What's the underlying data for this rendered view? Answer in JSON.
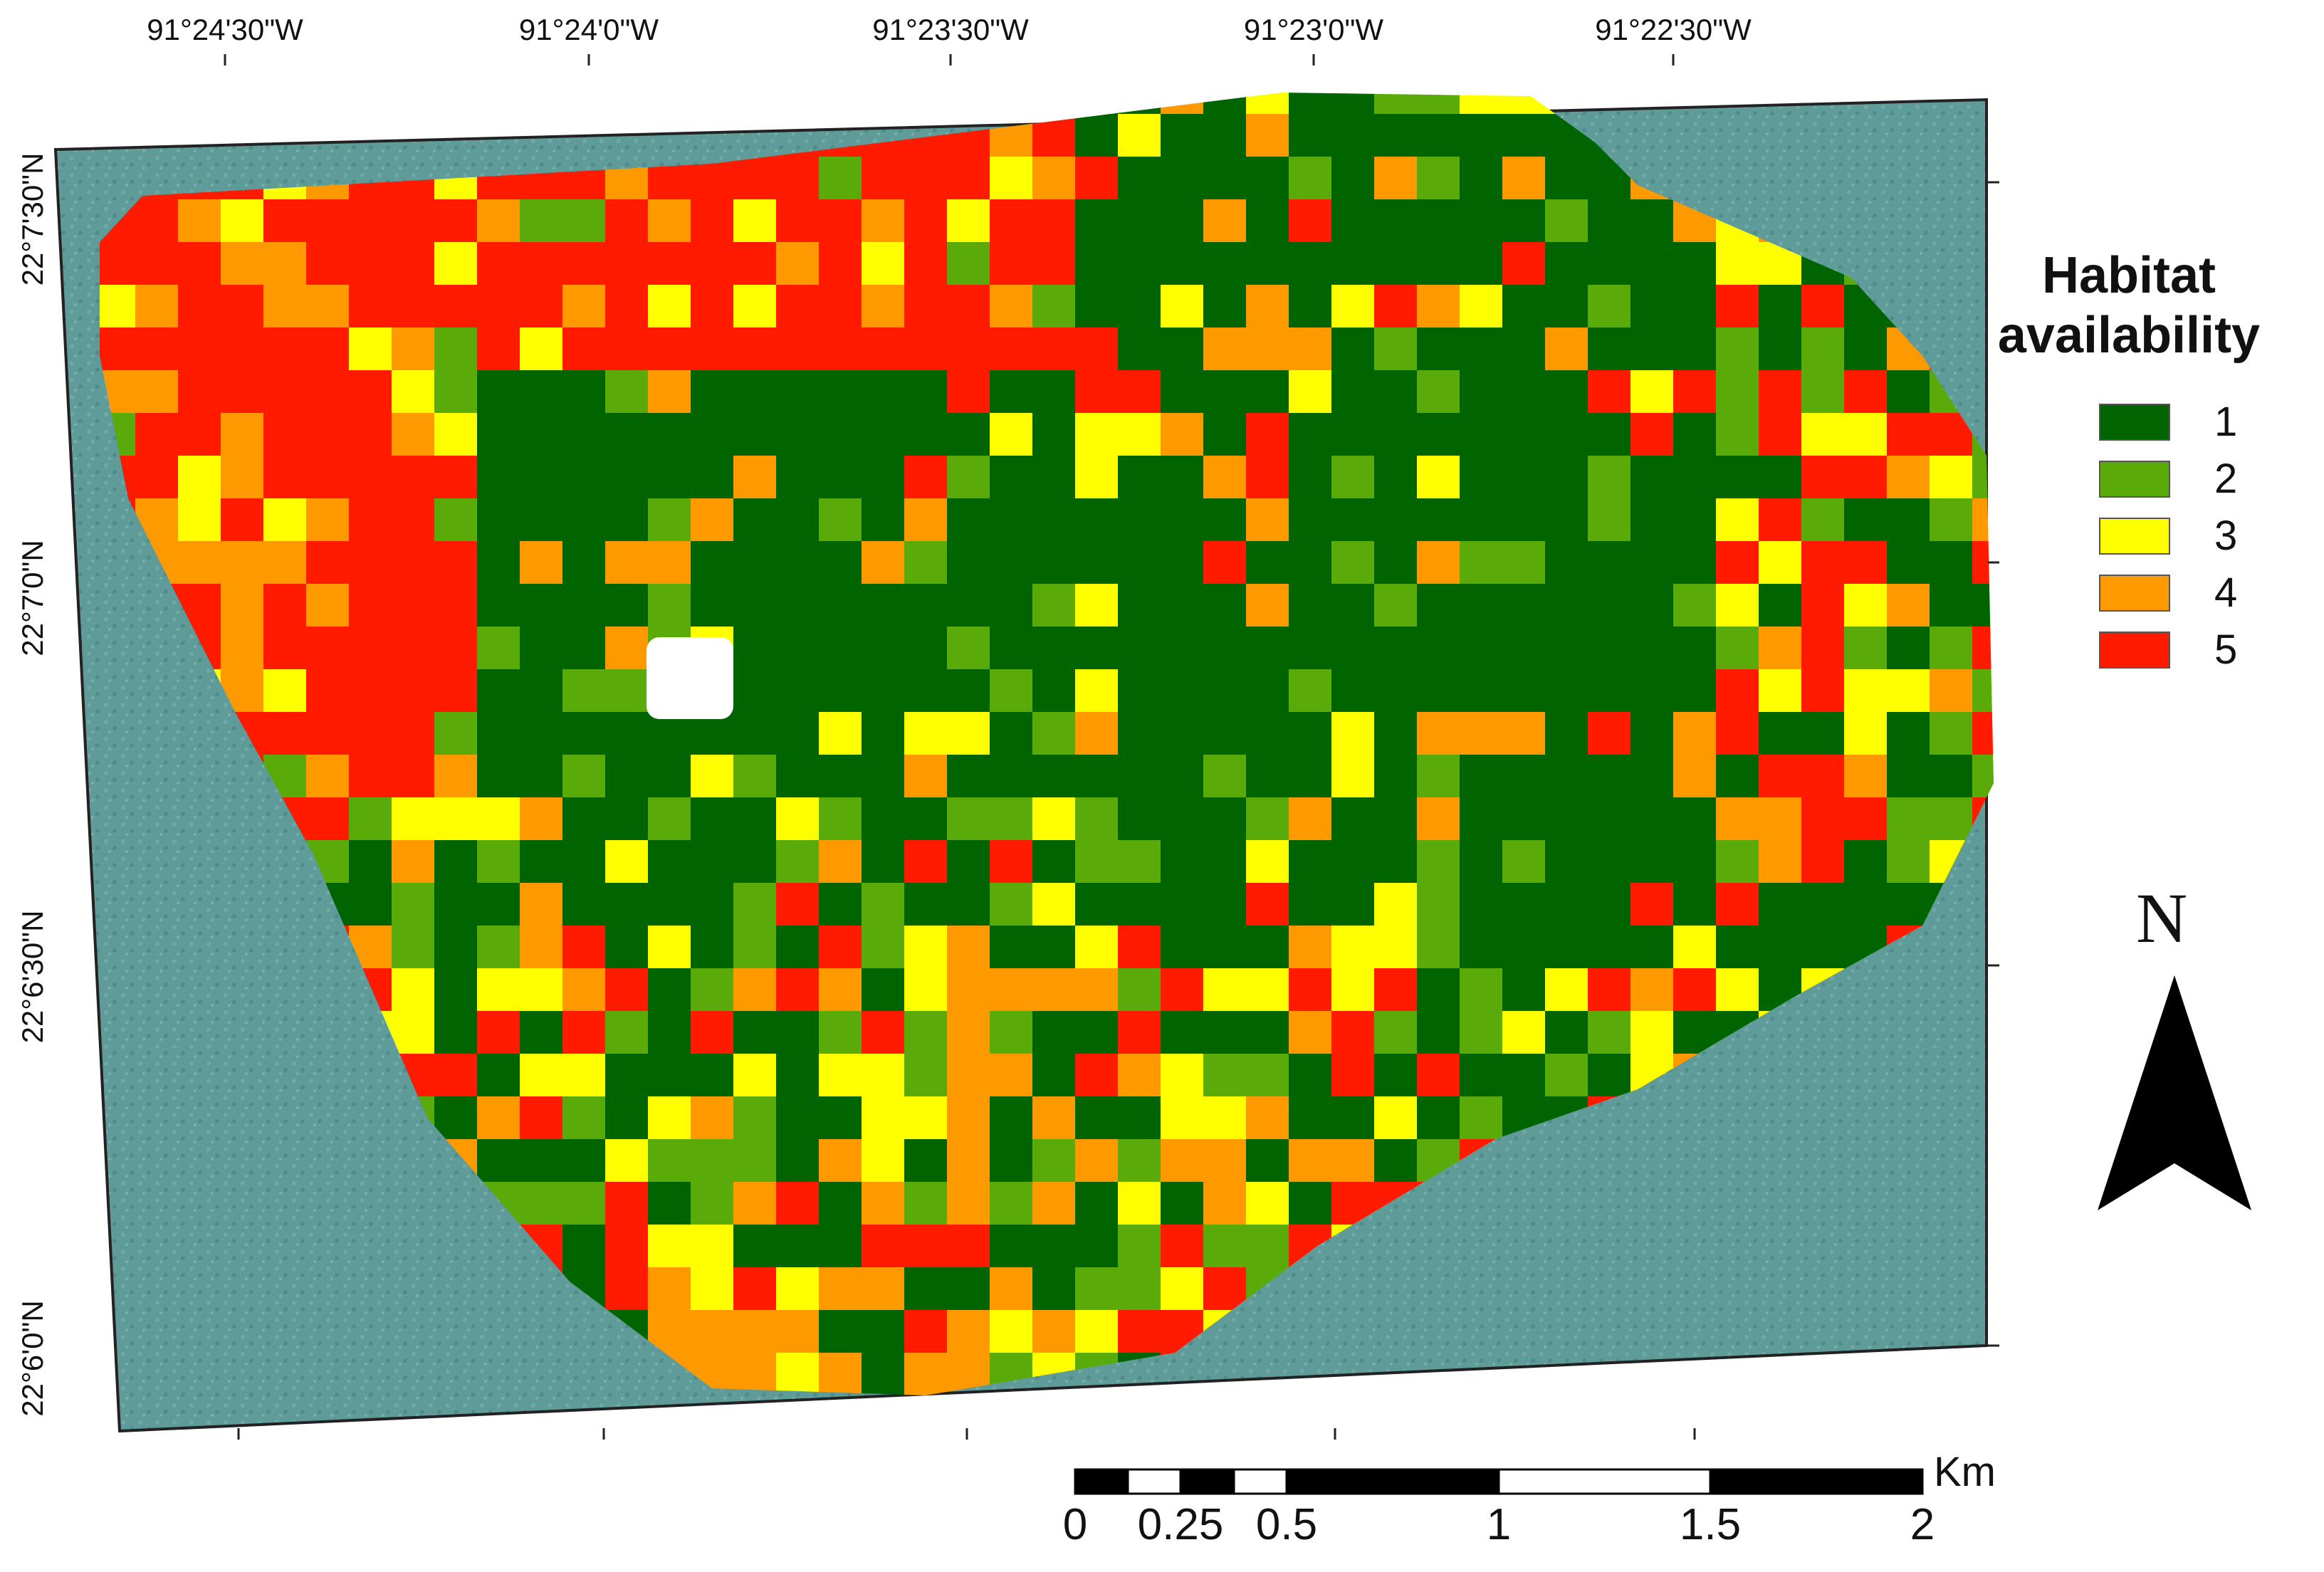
{
  "map": {
    "top_axis_labels": [
      "91°24'30\"W",
      "91°24'0\"W",
      "91°23'30\"W",
      "91°23'0\"W",
      "91°22'30\"W"
    ],
    "left_axis_labels": [
      "22°7'30\"N",
      "22°7'0\"N",
      "22°6'30\"N",
      "22°6'0\"N"
    ],
    "background_color": "#5f9b98",
    "raster_palette": {
      "1": "#006400",
      "2": "#5aaa0a",
      "3": "#ffff00",
      "4": "#ff9900",
      "5": "#ff1a00"
    }
  },
  "legend": {
    "title_line1": "Habitat",
    "title_line2": "availability",
    "items": [
      {
        "label": "1",
        "color": "#006400"
      },
      {
        "label": "2",
        "color": "#5aaa0a"
      },
      {
        "label": "3",
        "color": "#ffff00"
      },
      {
        "label": "4",
        "color": "#ff9900"
      },
      {
        "label": "5",
        "color": "#ff1a00"
      }
    ]
  },
  "north_arrow": {
    "letter": "N"
  },
  "scale_bar": {
    "unit": "Km",
    "labels": [
      "0",
      "0.25",
      "0.5",
      "1",
      "1.5",
      "2"
    ]
  }
}
